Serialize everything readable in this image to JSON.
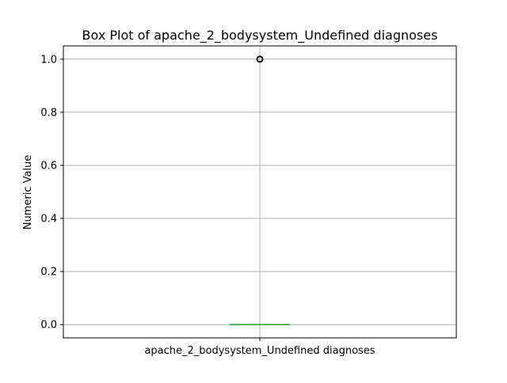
{
  "chart_data": {
    "type": "box",
    "title": "Box Plot of apache_2_bodysystem_Undefined diagnoses",
    "xlabel": "",
    "ylabel": "Numeric Value",
    "categories": [
      "apache_2_bodysystem_Undefined diagnoses"
    ],
    "ylim": [
      -0.05,
      1.05
    ],
    "yticks": [
      "0.0",
      "0.2",
      "0.4",
      "0.6",
      "0.8",
      "1.0"
    ],
    "grid": true,
    "boxes": [
      {
        "name": "apache_2_bodysystem_Undefined diagnoses",
        "min": 0.0,
        "q1": 0.0,
        "median": 0.0,
        "q3": 0.0,
        "max": 0.0,
        "outliers": [
          1.0
        ]
      }
    ]
  },
  "colors": {
    "box": "#1f77b4",
    "median": "#2ca02c",
    "whisker": "#000000",
    "grid": "#b0b0b0",
    "flier": "#000000"
  }
}
